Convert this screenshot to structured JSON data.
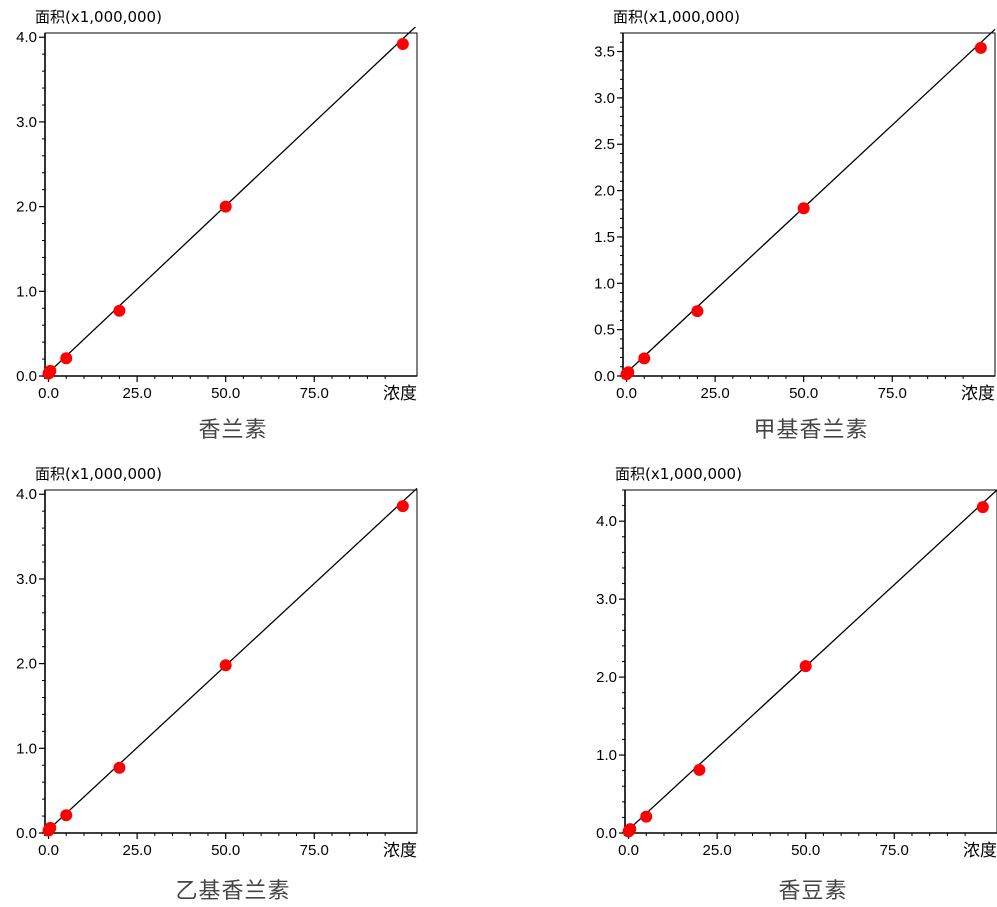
{
  "chart_data": [
    {
      "type": "scatter",
      "title": "香兰素",
      "ylabel": "面积(x1,000,000)",
      "xlabel": "浓度",
      "x_ticks": [
        "0.0",
        "25.0",
        "50.0",
        "75.0"
      ],
      "y_ticks": [
        "0.0",
        "1.0",
        "2.0",
        "3.0",
        "4.0"
      ],
      "xlim": [
        -1.0,
        104.0
      ],
      "ylim": [
        0.0,
        4.05
      ],
      "points": [
        {
          "x": 0.0,
          "y": 0.03
        },
        {
          "x": 0.5,
          "y": 0.06
        },
        {
          "x": 5.0,
          "y": 0.21
        },
        {
          "x": 20.0,
          "y": 0.77
        },
        {
          "x": 50.0,
          "y": 2.0
        },
        {
          "x": 100.0,
          "y": 3.92
        }
      ],
      "fit_line": {
        "x": [
          -1.0,
          104.0
        ],
        "y": [
          0.0,
          4.14
        ]
      },
      "grid": false,
      "point_color": "#ff0000",
      "line_color": "#000000"
    },
    {
      "type": "scatter",
      "title": "甲基香兰素",
      "ylabel": "面积(x1,000,000)",
      "xlabel": "浓度",
      "x_ticks": [
        "0.0",
        "25.0",
        "50.0",
        "75.0"
      ],
      "y_ticks": [
        "0.0",
        "0.5",
        "1.0",
        "1.5",
        "2.0",
        "2.5",
        "3.0",
        "3.5"
      ],
      "xlim": [
        -1.0,
        104.0
      ],
      "ylim": [
        0.0,
        3.7
      ],
      "points": [
        {
          "x": 0.0,
          "y": 0.02
        },
        {
          "x": 0.5,
          "y": 0.04
        },
        {
          "x": 5.0,
          "y": 0.19
        },
        {
          "x": 20.0,
          "y": 0.7
        },
        {
          "x": 50.0,
          "y": 1.81
        },
        {
          "x": 100.0,
          "y": 3.54
        }
      ],
      "fit_line": {
        "x": [
          -1.0,
          104.0
        ],
        "y": [
          0.0,
          3.74
        ]
      },
      "grid": false,
      "point_color": "#ff0000",
      "line_color": "#000000"
    },
    {
      "type": "scatter",
      "title": "乙基香兰素",
      "ylabel": "面积(x1,000,000)",
      "xlabel": "浓度",
      "x_ticks": [
        "0.0",
        "25.0",
        "50.0",
        "75.0"
      ],
      "y_ticks": [
        "0.0",
        "1.0",
        "2.0",
        "3.0",
        "4.0"
      ],
      "xlim": [
        -1.0,
        104.0
      ],
      "ylim": [
        0.0,
        4.05
      ],
      "points": [
        {
          "x": 0.0,
          "y": 0.03
        },
        {
          "x": 0.5,
          "y": 0.06
        },
        {
          "x": 5.0,
          "y": 0.21
        },
        {
          "x": 20.0,
          "y": 0.77
        },
        {
          "x": 50.0,
          "y": 1.98
        },
        {
          "x": 100.0,
          "y": 3.86
        }
      ],
      "fit_line": {
        "x": [
          -1.0,
          104.0
        ],
        "y": [
          0.0,
          4.07
        ]
      },
      "grid": false,
      "point_color": "#ff0000",
      "line_color": "#000000"
    },
    {
      "type": "scatter",
      "title": "香豆素",
      "ylabel": "面积(x1,000,000)",
      "xlabel": "浓度",
      "x_ticks": [
        "0.0",
        "25.0",
        "50.0",
        "75.0"
      ],
      "y_ticks": [
        "0.0",
        "1.0",
        "2.0",
        "3.0",
        "4.0"
      ],
      "xlim": [
        -1.0,
        104.0
      ],
      "ylim": [
        0.0,
        4.4
      ],
      "points": [
        {
          "x": 0.0,
          "y": 0.02
        },
        {
          "x": 0.5,
          "y": 0.05
        },
        {
          "x": 5.0,
          "y": 0.21
        },
        {
          "x": 20.0,
          "y": 0.81
        },
        {
          "x": 50.0,
          "y": 2.14
        },
        {
          "x": 100.0,
          "y": 4.18
        }
      ],
      "fit_line": {
        "x": [
          -1.0,
          104.0
        ],
        "y": [
          0.0,
          4.4
        ]
      },
      "grid": false,
      "point_color": "#ff0000",
      "line_color": "#000000"
    }
  ]
}
